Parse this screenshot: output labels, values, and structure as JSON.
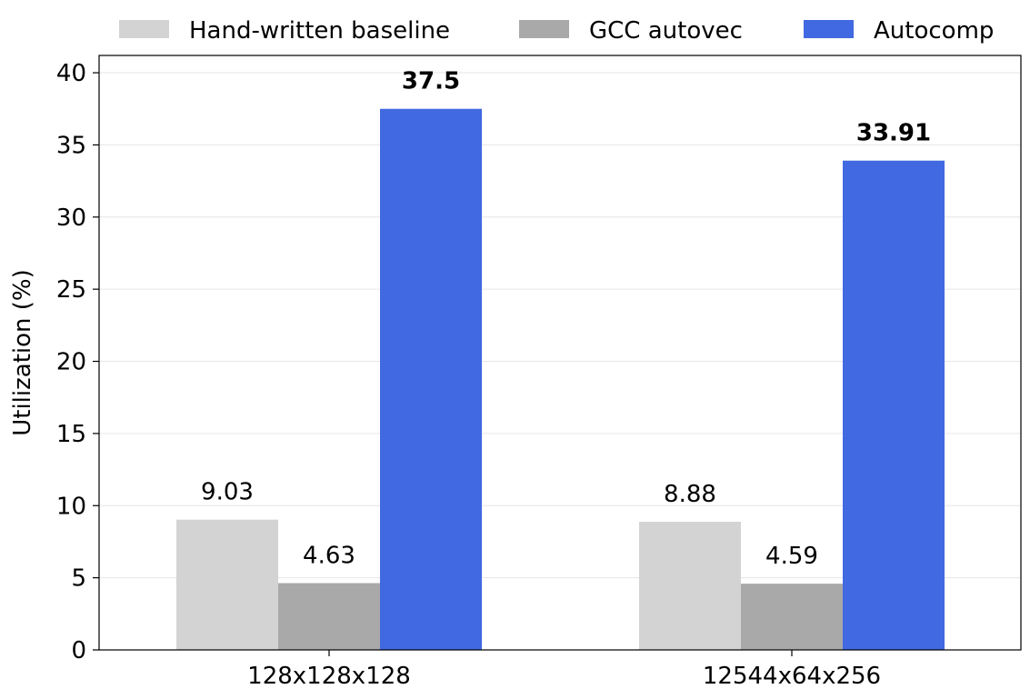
{
  "chart_data": {
    "type": "bar",
    "title": "",
    "xlabel": "",
    "ylabel": "Utilization (%)",
    "ylim": [
      0,
      41.2
    ],
    "yticks": [
      0,
      5,
      10,
      15,
      20,
      25,
      30,
      35,
      40
    ],
    "grid": "horizontal",
    "legend_position": "top",
    "categories": [
      "128x128x128",
      "12544x64x256"
    ],
    "series": [
      {
        "name": "Hand-written baseline",
        "values": [
          9.03,
          8.88
        ],
        "color": "#d3d3d3",
        "labels": [
          "9.03",
          "8.88"
        ],
        "label_bold": false
      },
      {
        "name": "GCC autovec",
        "values": [
          4.63,
          4.59
        ],
        "color": "#a9a9a9",
        "labels": [
          "4.63",
          "4.59"
        ],
        "label_bold": false
      },
      {
        "name": "Autocomp",
        "values": [
          37.5,
          33.91
        ],
        "color": "#4169e1",
        "labels": [
          "37.5",
          "33.91"
        ],
        "label_bold": true
      }
    ]
  }
}
